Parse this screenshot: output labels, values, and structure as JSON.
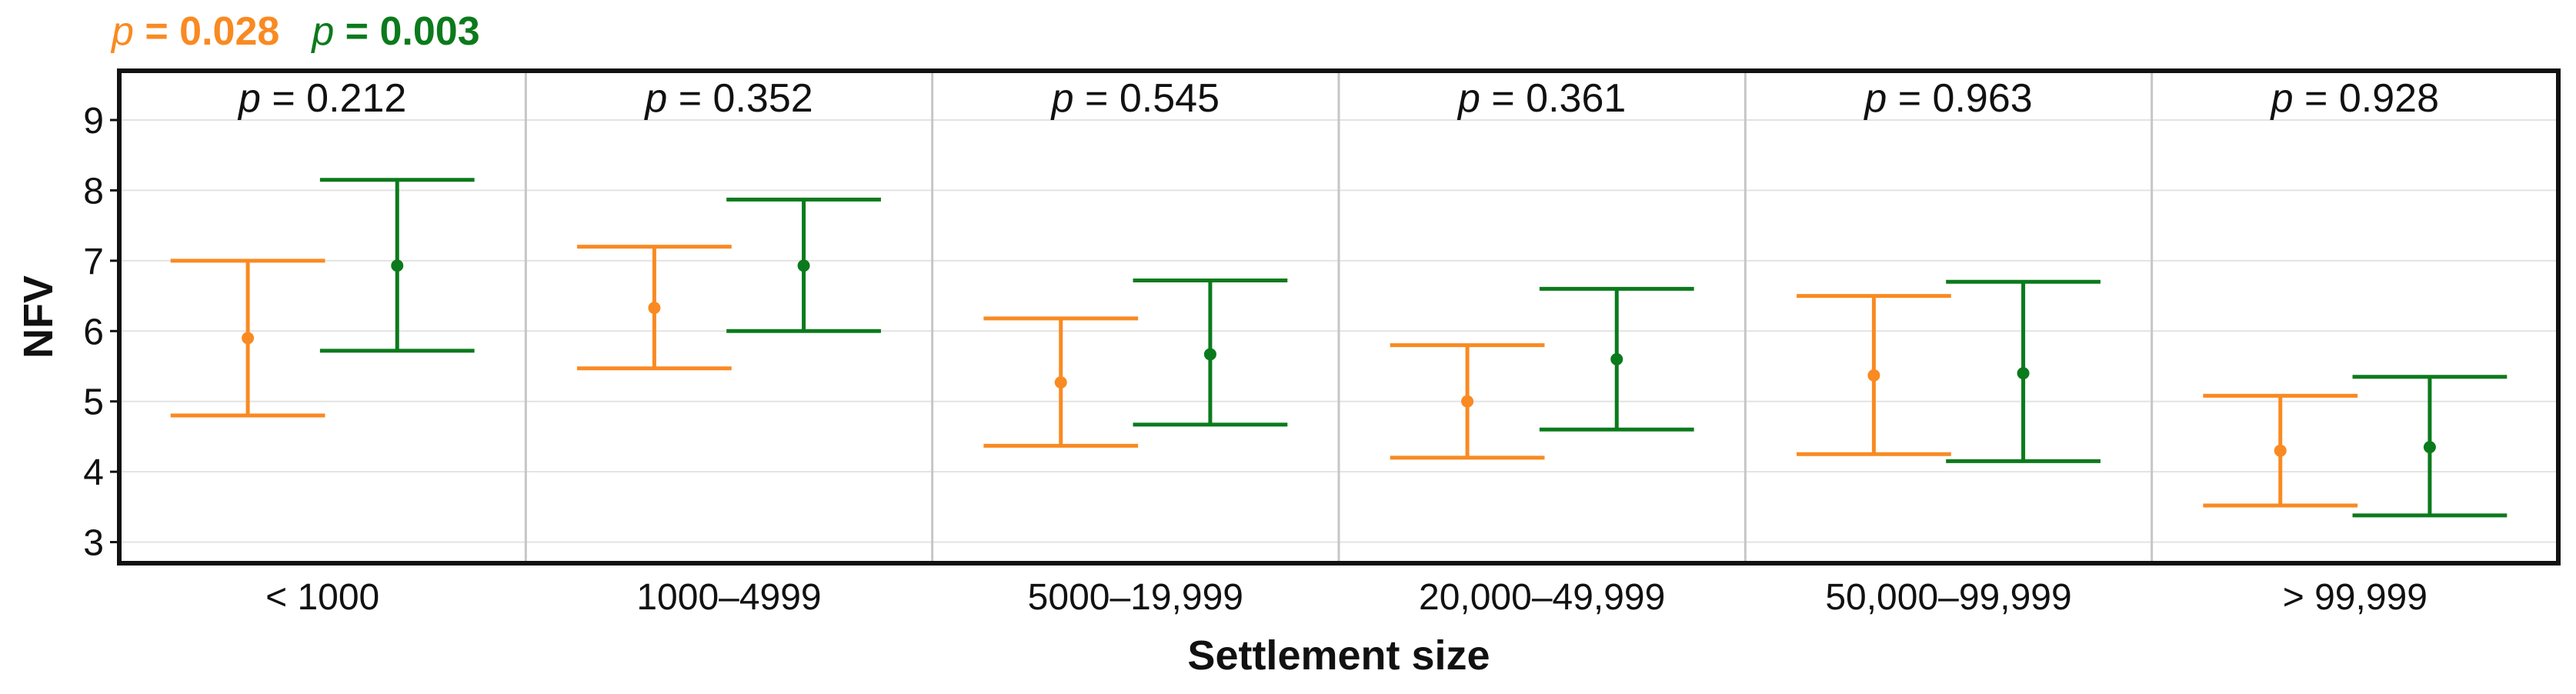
{
  "legend": [
    {
      "label": "p",
      "text": " = 0.028",
      "color": "#f98a22"
    },
    {
      "label": "p",
      "text": " = 0.003",
      "color": "#0b7a1c"
    }
  ],
  "colors": {
    "orange": "#f98a22",
    "green": "#0b7a1c",
    "frame": "#111111",
    "grid": "#e3e3e3",
    "divider": "#c6c6c6"
  },
  "chart_data": {
    "type": "errorbar",
    "xlabel": "Settlement size",
    "ylabel": "NFV",
    "ylim": [
      2.7,
      9.7
    ],
    "yticks": [
      3,
      4,
      5,
      6,
      7,
      8,
      9
    ],
    "grid": true,
    "legend_position": "top-left",
    "categories": [
      "< 1000",
      "1000–4999",
      "5000–19,999",
      "20,000–49,999",
      "50,000–99,999",
      "> 99,999"
    ],
    "panel_p_values": [
      "p = 0.212",
      "p = 0.352",
      "p = 0.545",
      "p = 0.361",
      "p = 0.963",
      "p = 0.928"
    ],
    "series": [
      {
        "color": "orange",
        "mean": [
          5.9,
          6.33,
          5.27,
          5.0,
          5.37,
          4.3
        ],
        "lower": [
          4.8,
          5.47,
          4.37,
          4.2,
          4.25,
          3.52
        ],
        "upper": [
          7.0,
          7.2,
          6.18,
          5.8,
          6.5,
          5.08
        ]
      },
      {
        "color": "green",
        "mean": [
          6.93,
          6.93,
          5.67,
          5.6,
          5.4,
          4.35
        ],
        "lower": [
          5.72,
          6.0,
          4.67,
          4.6,
          4.15,
          3.38
        ],
        "upper": [
          8.15,
          7.87,
          6.72,
          6.6,
          6.7,
          5.35
        ]
      }
    ]
  }
}
